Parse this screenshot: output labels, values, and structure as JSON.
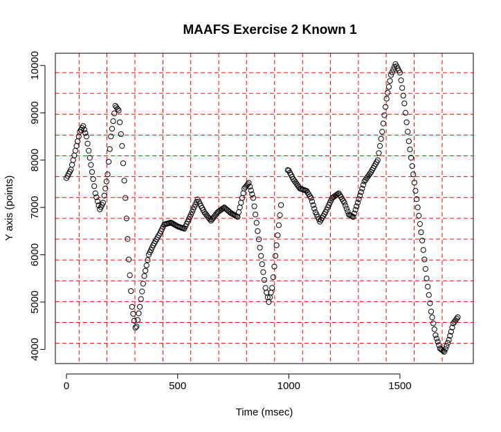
{
  "chart_data": {
    "type": "scatter",
    "title": "MAAFS Exercise 2 Known 1",
    "xlabel": "Time (msec)",
    "ylabel": "Y axis (points)",
    "xlim": [
      -50,
      1830
    ],
    "ylim": [
      3700,
      10260
    ],
    "x_ticks": [
      0,
      500,
      1000,
      1500
    ],
    "y_ticks": [
      4000,
      5000,
      6000,
      7000,
      8000,
      9000,
      10000
    ],
    "marker": "open-circle",
    "grid": {
      "color": "#ff0000",
      "style": "dashed",
      "x": [
        57,
        182,
        308,
        434,
        559,
        685,
        810,
        936,
        1062,
        1187,
        1313,
        1438,
        1564,
        1690
      ],
      "y": [
        4130,
        4570,
        5010,
        5450,
        5890,
        6330,
        6770,
        7210,
        7650,
        8090,
        8530,
        8970,
        9410,
        9850
      ]
    },
    "keyframes": [
      [
        0,
        7620
      ],
      [
        20,
        7800
      ],
      [
        40,
        8200
      ],
      [
        60,
        8600
      ],
      [
        75,
        8720
      ],
      [
        90,
        8500
      ],
      [
        110,
        7900
      ],
      [
        130,
        7300
      ],
      [
        150,
        6960
      ],
      [
        165,
        7100
      ],
      [
        185,
        7700
      ],
      [
        200,
        8500
      ],
      [
        220,
        9150
      ],
      [
        235,
        9050
      ],
      [
        250,
        8300
      ],
      [
        265,
        7200
      ],
      [
        280,
        5900
      ],
      [
        295,
        4900
      ],
      [
        312,
        4400
      ],
      [
        330,
        4900
      ],
      [
        350,
        5550
      ],
      [
        370,
        6000
      ],
      [
        390,
        6200
      ],
      [
        420,
        6450
      ],
      [
        440,
        6640
      ],
      [
        470,
        6680
      ],
      [
        500,
        6600
      ],
      [
        530,
        6550
      ],
      [
        560,
        6850
      ],
      [
        590,
        7170
      ],
      [
        620,
        6900
      ],
      [
        650,
        6720
      ],
      [
        680,
        6900
      ],
      [
        710,
        7000
      ],
      [
        740,
        6880
      ],
      [
        770,
        6800
      ],
      [
        800,
        7400
      ],
      [
        820,
        7520
      ],
      [
        840,
        7200
      ],
      [
        860,
        6500
      ],
      [
        880,
        5800
      ],
      [
        895,
        5300
      ],
      [
        910,
        5000
      ],
      [
        925,
        5300
      ],
      [
        945,
        6200
      ],
      [
        965,
        7050
      ],
      [
        980,
        null
      ],
      [
        990,
        7800
      ],
      [
        1000,
        7780
      ],
      [
        1020,
        7600
      ],
      [
        1050,
        7400
      ],
      [
        1080,
        7350
      ],
      [
        1100,
        7200
      ],
      [
        1120,
        6900
      ],
      [
        1140,
        6700
      ],
      [
        1165,
        6900
      ],
      [
        1195,
        7200
      ],
      [
        1225,
        7300
      ],
      [
        1250,
        7100
      ],
      [
        1270,
        6850
      ],
      [
        1290,
        6800
      ],
      [
        1310,
        7100
      ],
      [
        1340,
        7550
      ],
      [
        1370,
        7750
      ],
      [
        1400,
        8000
      ],
      [
        1420,
        8600
      ],
      [
        1440,
        9300
      ],
      [
        1460,
        9800
      ],
      [
        1480,
        10030
      ],
      [
        1500,
        9850
      ],
      [
        1520,
        9200
      ],
      [
        1540,
        8400
      ],
      [
        1560,
        7700
      ],
      [
        1580,
        7000
      ],
      [
        1600,
        6300
      ],
      [
        1620,
        5500
      ],
      [
        1640,
        4800
      ],
      [
        1660,
        4300
      ],
      [
        1680,
        4020
      ],
      [
        1700,
        3950
      ],
      [
        1720,
        4200
      ],
      [
        1740,
        4550
      ],
      [
        1760,
        4680
      ]
    ],
    "step": 5
  }
}
